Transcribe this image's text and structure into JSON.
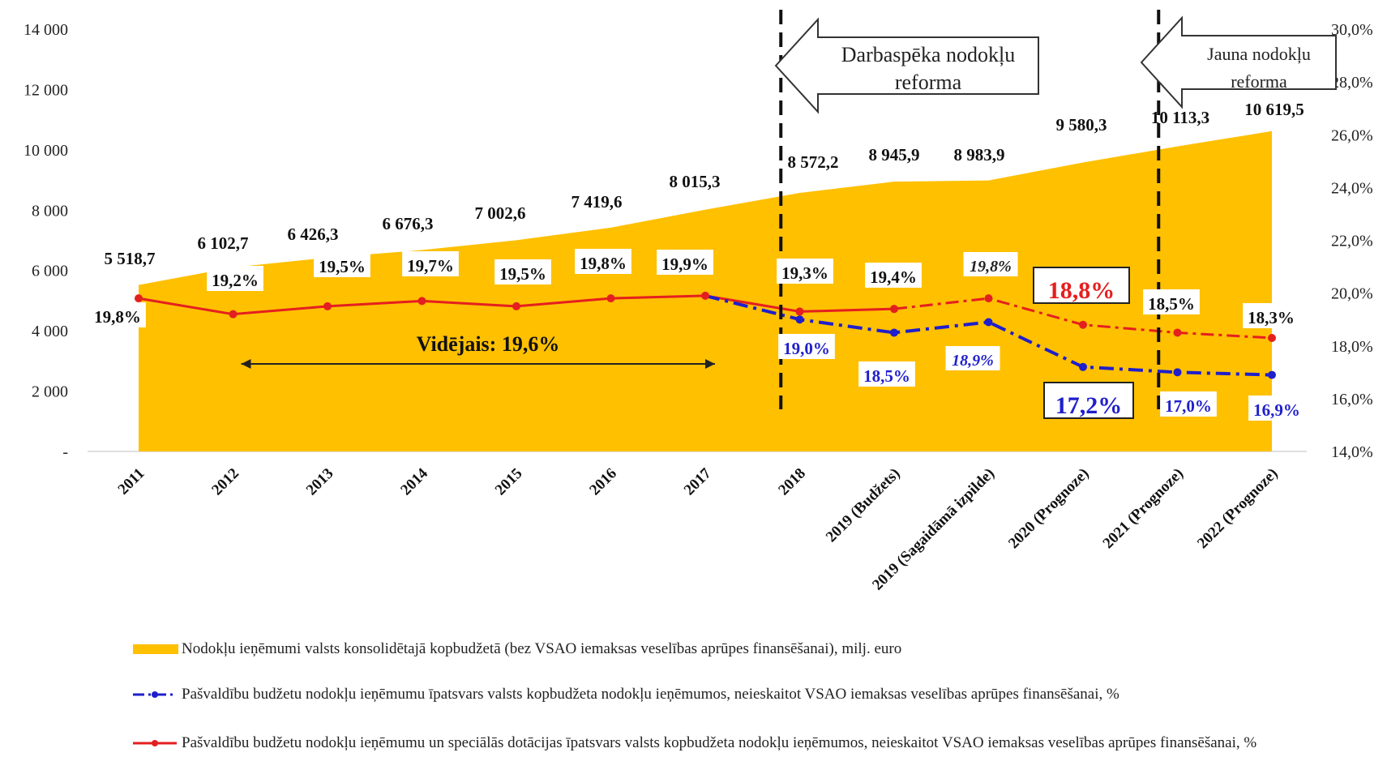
{
  "chart_data": {
    "type": "area+line",
    "categories": [
      "2011",
      "2012",
      "2013",
      "2014",
      "2015",
      "2016",
      "2017",
      "2018",
      "2019 (Budžets)",
      "2019 (Sagaidāmā izpilde)",
      "2020 (Prognoze)",
      "2021 (Prognoze)",
      "2022 (Prognoze)"
    ],
    "left_axis": {
      "ylim": [
        0,
        14000
      ],
      "ticks": [
        "-",
        "2 000",
        "4 000",
        "6 000",
        "8 000",
        "10 000",
        "12 000",
        "14 000"
      ],
      "tick_values": [
        0,
        2000,
        4000,
        6000,
        8000,
        10000,
        12000,
        14000
      ]
    },
    "right_axis": {
      "ylim": [
        14,
        30
      ],
      "ticks": [
        "14,0%",
        "16,0%",
        "18,0%",
        "20,0%",
        "22,0%",
        "24,0%",
        "26,0%",
        "28,0%",
        "30,0%"
      ],
      "tick_values": [
        14,
        16,
        18,
        20,
        22,
        24,
        26,
        28,
        30
      ]
    },
    "series": [
      {
        "name": "Nodokļu ieņēmumi valsts konsolidētajā kopbudžetā (bez VSAO iemaksas veselības aprūpes finansēšanai), milj. euro",
        "type": "area",
        "axis": "left",
        "color": "#FFC000",
        "values": [
          5518.7,
          6102.7,
          6426.3,
          6676.3,
          7002.6,
          7419.6,
          8015.3,
          8572.2,
          8945.9,
          8983.9,
          9580.3,
          10113.3,
          10619.5
        ],
        "labels": [
          "5 518,7",
          "6 102,7",
          "6 426,3",
          "6 676,3",
          "7 002,6",
          "7 419,6",
          "8 015,3",
          "8 572,2",
          "8 945,9",
          "8 983,9",
          "9 580,3",
          "10 113,3",
          "10 619,5"
        ]
      },
      {
        "name": "Pašvaldību budžetu nodokļu ieņēmumu īpatsvars valsts kopbudžeta nodokļu ieņēmumos, neieskaitot VSAO iemaksas veselības aprūpes finansēšanai, %",
        "type": "line",
        "axis": "right",
        "color": "#1F1FCC",
        "style": "dash-dot",
        "values": [
          null,
          null,
          null,
          null,
          null,
          null,
          19.9,
          19.0,
          18.5,
          18.9,
          17.2,
          17.0,
          16.9
        ],
        "labels": [
          "",
          "",
          "",
          "",
          "",
          "",
          "",
          "19,0%",
          "18,5%",
          "18,9%",
          "17,2%",
          "17,0%",
          "16,9%"
        ]
      },
      {
        "name": "Pašvaldību budžetu nodokļu ieņēmumu un speciālās dotācijas īpatsvars valsts kopbudžeta nodokļu ieņēmumos, neieskaitot VSAO iemaksas veselības aprūpes finansēšanai, %",
        "type": "line",
        "axis": "right",
        "color": "#E41F1F",
        "values": [
          19.8,
          19.2,
          19.5,
          19.7,
          19.5,
          19.8,
          19.9,
          19.3,
          19.4,
          19.8,
          18.8,
          18.5,
          18.3
        ],
        "labels": [
          "19,8%",
          "19,2%",
          "19,5%",
          "19,7%",
          "19,5%",
          "19,8%",
          "19,9%",
          "19,3%",
          "19,4%",
          "19,8%",
          "18,8%",
          "18,5%",
          "18,3%"
        ]
      }
    ],
    "annotations": {
      "average": "Vidējais: 19,6%",
      "reform1": [
        "Darbaspēka  nodokļu",
        "reforma"
      ],
      "reform2": [
        "Jauna nodokļu",
        "reforma"
      ]
    },
    "legend_position": "bottom"
  },
  "colors": {
    "area": "#FFC000",
    "blue": "#1F1FCC",
    "red": "#E41F1F"
  }
}
